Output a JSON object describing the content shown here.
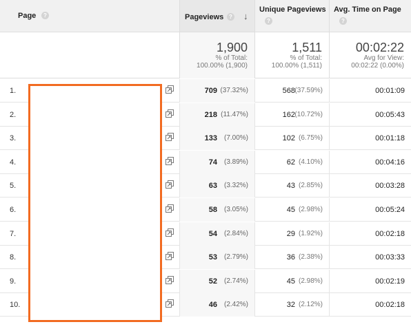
{
  "headers": {
    "page": "Page",
    "pageviews": "Pageviews",
    "unique_pageviews": "Unique Pageviews",
    "avg_time": "Avg. Time on Page",
    "help_glyph": "?",
    "sort_glyph": "↓"
  },
  "totals": {
    "pageviews": "1,900",
    "pageviews_sub1": "% of Total:",
    "pageviews_sub2": "100.00% (1,900)",
    "unique": "1,511",
    "unique_sub1": "% of Total:",
    "unique_sub2": "100.00% (1,511)",
    "avg": "00:02:22",
    "avg_sub1": "Avg for View:",
    "avg_sub2": "00:02:22 (0.00%)"
  },
  "rows": [
    {
      "idx": "1.",
      "pv": "709",
      "pv_pct": "(37.32%)",
      "upv": "568",
      "upv_pct": "(37.59%)",
      "avg": "00:01:09"
    },
    {
      "idx": "2.",
      "pv": "218",
      "pv_pct": "(11.47%)",
      "upv": "162",
      "upv_pct": "(10.72%)",
      "avg": "00:05:43"
    },
    {
      "idx": "3.",
      "pv": "133",
      "pv_pct": "(7.00%)",
      "upv": "102",
      "upv_pct": "(6.75%)",
      "avg": "00:01:18"
    },
    {
      "idx": "4.",
      "pv": "74",
      "pv_pct": "(3.89%)",
      "upv": "62",
      "upv_pct": "(4.10%)",
      "avg": "00:04:16"
    },
    {
      "idx": "5.",
      "pv": "63",
      "pv_pct": "(3.32%)",
      "upv": "43",
      "upv_pct": "(2.85%)",
      "avg": "00:03:28"
    },
    {
      "idx": "6.",
      "pv": "58",
      "pv_pct": "(3.05%)",
      "upv": "45",
      "upv_pct": "(2.98%)",
      "avg": "00:05:24"
    },
    {
      "idx": "7.",
      "pv": "54",
      "pv_pct": "(2.84%)",
      "upv": "29",
      "upv_pct": "(1.92%)",
      "avg": "00:02:18"
    },
    {
      "idx": "8.",
      "pv": "53",
      "pv_pct": "(2.79%)",
      "upv": "36",
      "upv_pct": "(2.38%)",
      "avg": "00:03:33"
    },
    {
      "idx": "9.",
      "pv": "52",
      "pv_pct": "(2.74%)",
      "upv": "45",
      "upv_pct": "(2.98%)",
      "avg": "00:02:19"
    },
    {
      "idx": "10.",
      "pv": "46",
      "pv_pct": "(2.42%)",
      "upv": "32",
      "upv_pct": "(2.12%)",
      "avg": "00:02:18"
    }
  ],
  "colors": {
    "redaction_border": "#f26b21",
    "header_bg": "#f1f1f1",
    "sorted_column_bg": "#f7f7f7"
  },
  "icons": {
    "row_link": "open-in-new-window-icon",
    "help": "help-icon",
    "sort": "sort-descending-icon"
  }
}
